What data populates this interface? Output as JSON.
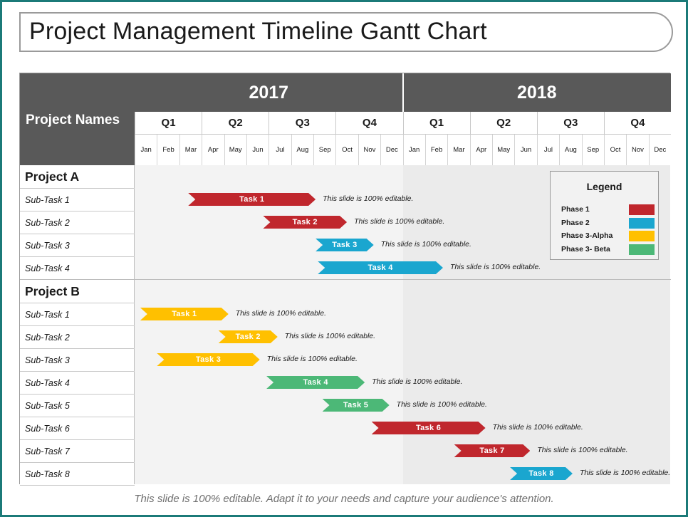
{
  "title": "Project Management Timeline Gantt Chart",
  "header": {
    "names_label": "Project Names",
    "years": [
      "2017",
      "2018"
    ],
    "quarters": [
      "Q1",
      "Q2",
      "Q3",
      "Q4",
      "Q1",
      "Q2",
      "Q3",
      "Q4"
    ],
    "months": [
      "Jan",
      "Feb",
      "Mar",
      "Apr",
      "May",
      "Jun",
      "Jul",
      "Aug",
      "Sep",
      "Oct",
      "Nov",
      "Dec",
      "Jan",
      "Feb",
      "Mar",
      "Apr",
      "May",
      "Jun",
      "Jul",
      "Aug",
      "Sep",
      "Oct",
      "Nov",
      "Dec"
    ]
  },
  "projects": [
    {
      "name": "Project A",
      "tasks": [
        {
          "subtask": "Sub-Task 1",
          "label": "Task 1",
          "phase": "Phase 1",
          "start_month": 2.4,
          "end_month": 8.1,
          "note": "This slide is 100% editable."
        },
        {
          "subtask": "Sub-Task 2",
          "label": "Task 2",
          "phase": "Phase 1",
          "start_month": 5.75,
          "end_month": 9.5,
          "note": "This slide is 100% editable."
        },
        {
          "subtask": "Sub-Task 3",
          "label": "Task 3",
          "phase": "Phase 2",
          "start_month": 8.1,
          "end_month": 10.7,
          "note": "This slide is 100% editable."
        },
        {
          "subtask": "Sub-Task 4",
          "label": "Task 4",
          "phase": "Phase 2",
          "start_month": 8.2,
          "end_month": 13.8,
          "note": "This slide is 100% editable."
        }
      ]
    },
    {
      "name": "Project B",
      "tasks": [
        {
          "subtask": "Sub-Task 1",
          "label": "Task 1",
          "phase": "Phase 3-Alpha",
          "start_month": 0.25,
          "end_month": 4.2,
          "note": "This slide is 100% editable."
        },
        {
          "subtask": "Sub-Task 2",
          "label": "Task 2",
          "phase": "Phase 3-Alpha",
          "start_month": 3.75,
          "end_month": 6.4,
          "note": "This slide is 100% editable."
        },
        {
          "subtask": "Sub-Task 3",
          "label": "Task 3",
          "phase": "Phase 3-Alpha",
          "start_month": 1.0,
          "end_month": 5.6,
          "note": "This slide is 100% editable."
        },
        {
          "subtask": "Sub-Task 4",
          "label": "Task 4",
          "phase": "Phase 3- Beta",
          "start_month": 5.9,
          "end_month": 10.3,
          "note": "This slide is 100% editable."
        },
        {
          "subtask": "Sub-Task 5",
          "label": "Task 5",
          "phase": "Phase 3- Beta",
          "start_month": 8.4,
          "end_month": 11.4,
          "note": "This slide is 100% editable."
        },
        {
          "subtask": "Sub-Task 6",
          "label": "Task 6",
          "phase": "Phase 1",
          "start_month": 10.6,
          "end_month": 15.7,
          "note": "This slide is 100% editable."
        },
        {
          "subtask": "Sub-Task 7",
          "label": "Task 7",
          "phase": "Phase 1",
          "start_month": 14.3,
          "end_month": 17.7,
          "note": "This slide is 100% editable."
        },
        {
          "subtask": "Sub-Task 8",
          "label": "Task 8",
          "phase": "Phase 2",
          "start_month": 16.8,
          "end_month": 19.6,
          "note": "This slide is 100% editable."
        }
      ]
    }
  ],
  "legend": {
    "title": "Legend",
    "items": [
      {
        "label": "Phase 1",
        "color": "#c0272d"
      },
      {
        "label": "Phase 2",
        "color": "#1aa6cf"
      },
      {
        "label": "Phase 3-Alpha",
        "color": "#ffc000"
      },
      {
        "label": "Phase 3- Beta",
        "color": "#4cb877"
      }
    ]
  },
  "footer": "This slide is 100% editable. Adapt it to your needs and capture your audience's attention."
}
